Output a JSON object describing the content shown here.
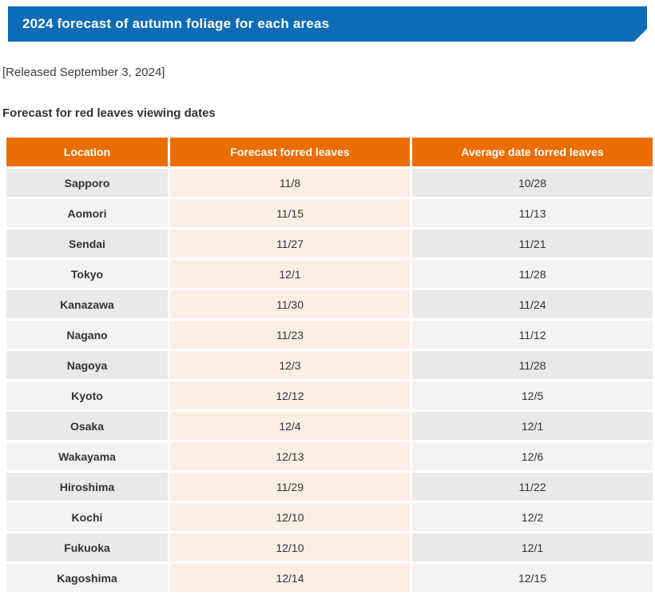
{
  "banner": {
    "title": "2024 forecast of autumn foliage for each areas",
    "bg_color": "#0d6cb5"
  },
  "released_line": "[Released September 3, 2024]",
  "section_title": "Forecast for red leaves viewing dates",
  "table": {
    "header_bg": "#ec6d01",
    "mid_column_bg": "#fdeee5",
    "row_alt_colors": [
      "#e9e9e9",
      "#f3f3f3"
    ],
    "columns": [
      "Location",
      "Forecast forred leaves",
      "Average date forred leaves"
    ],
    "rows": [
      {
        "location": "Sapporo",
        "forecast": "11/8",
        "average": "10/28"
      },
      {
        "location": "Aomori",
        "forecast": "11/15",
        "average": "11/13"
      },
      {
        "location": "Sendai",
        "forecast": "11/27",
        "average": "11/21"
      },
      {
        "location": "Tokyo",
        "forecast": "12/1",
        "average": "11/28"
      },
      {
        "location": "Kanazawa",
        "forecast": "11/30",
        "average": "11/24"
      },
      {
        "location": "Nagano",
        "forecast": "11/23",
        "average": "11/12"
      },
      {
        "location": "Nagoya",
        "forecast": "12/3",
        "average": "11/28"
      },
      {
        "location": "Kyoto",
        "forecast": "12/12",
        "average": "12/5"
      },
      {
        "location": "Osaka",
        "forecast": "12/4",
        "average": "12/1"
      },
      {
        "location": "Wakayama",
        "forecast": "12/13",
        "average": "12/6"
      },
      {
        "location": "Hiroshima",
        "forecast": "11/29",
        "average": "11/22"
      },
      {
        "location": "Kochi",
        "forecast": "12/10",
        "average": "12/2"
      },
      {
        "location": "Fukuoka",
        "forecast": "12/10",
        "average": "12/1"
      },
      {
        "location": "Kagoshima",
        "forecast": "12/14",
        "average": "12/15"
      }
    ]
  }
}
